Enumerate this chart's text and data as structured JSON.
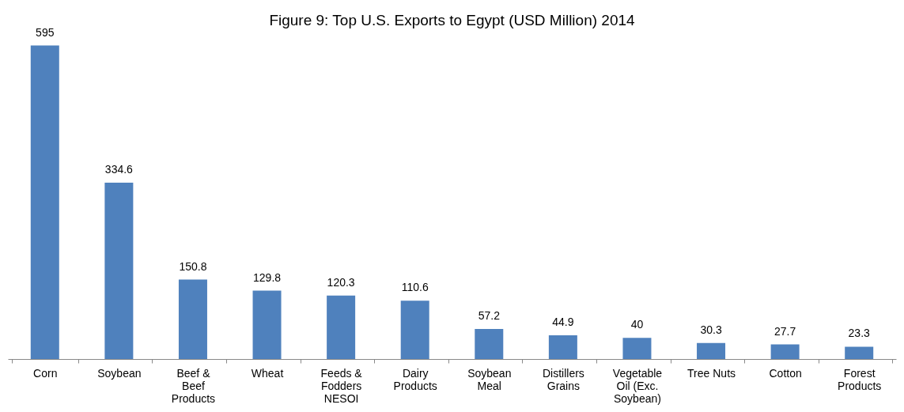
{
  "chart_data": {
    "type": "bar",
    "title": "Figure 9: Top U.S. Exports to Egypt (USD Million) 2014",
    "categories": [
      "Corn",
      "Soybean",
      "Beef & Beef Products",
      "Wheat",
      "Feeds & Fodders NESOI",
      "Dairy Products",
      "Soybean Meal",
      "Distillers Grains",
      "Vegetable Oil (Exc. Soybean)",
      "Tree Nuts",
      "Cotton",
      "Forest Products"
    ],
    "values": [
      595,
      334.6,
      150.8,
      129.8,
      120.3,
      110.6,
      57.2,
      44.9,
      40,
      30.3,
      27.7,
      23.3
    ],
    "color": "#4f81bd",
    "data_labels": true,
    "grid": false
  }
}
